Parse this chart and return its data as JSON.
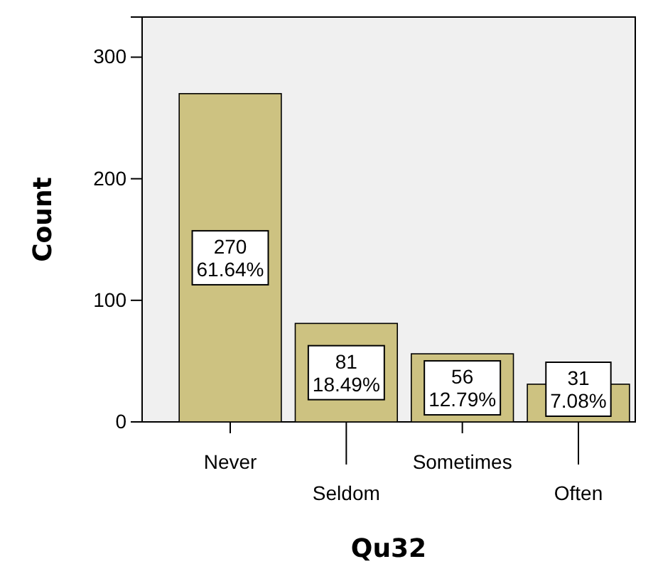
{
  "chart_data": {
    "type": "bar",
    "xlabel": "Qu32",
    "ylabel": "Count",
    "categories": [
      "Never",
      "Seldom",
      "Sometimes",
      "Often"
    ],
    "values": [
      270,
      81,
      56,
      31
    ],
    "color": "#cdc281",
    "value_labels": [
      "270\n61.64%",
      "81\n18.49%",
      "56\n12.79%",
      "31\n7.08%"
    ],
    "ylim": [
      0,
      333
    ],
    "yticks": [
      0,
      100,
      200,
      300
    ]
  }
}
